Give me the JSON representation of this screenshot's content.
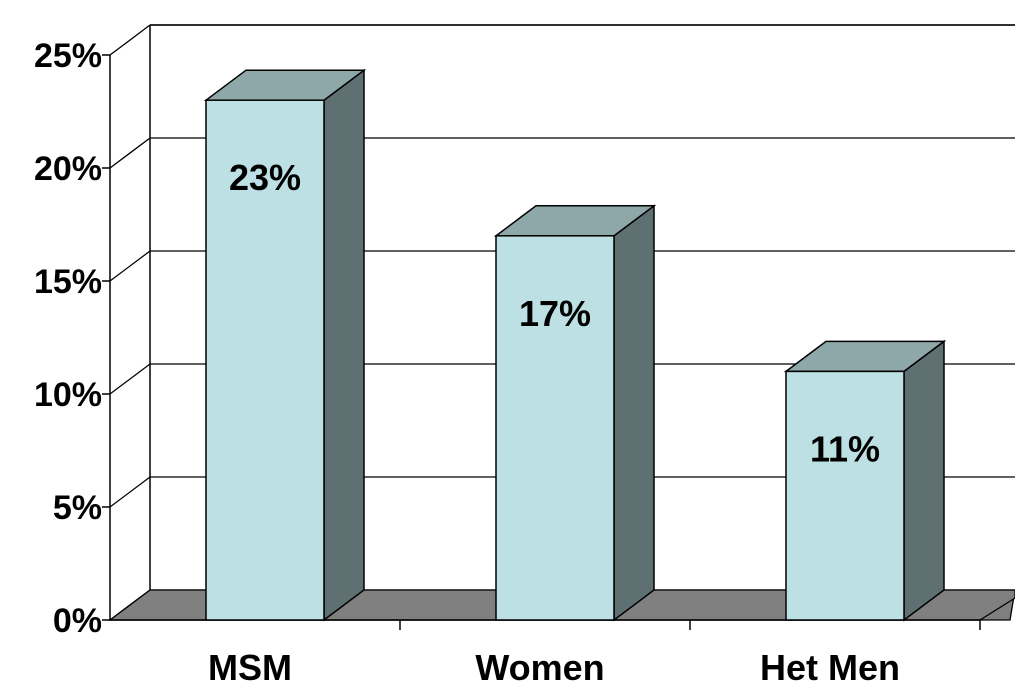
{
  "chart_data": {
    "type": "bar",
    "title": "",
    "xlabel": "",
    "ylabel": "",
    "categories": [
      "MSM",
      "Women",
      "Het Men"
    ],
    "values": [
      23,
      17,
      11
    ],
    "data_labels": [
      "23%",
      "17%",
      "11%"
    ],
    "ylim": [
      0,
      25
    ],
    "yticks": [
      "0%",
      "5%",
      "10%",
      "15%",
      "20%",
      "25%"
    ],
    "grid": true,
    "legend": "none",
    "style": "3d",
    "colors": {
      "bar_front": "#BCE0E3",
      "bar_top": "#8EA7A8",
      "bar_side": "#5E7072",
      "floor": "#808080",
      "grid": "#000000"
    }
  }
}
